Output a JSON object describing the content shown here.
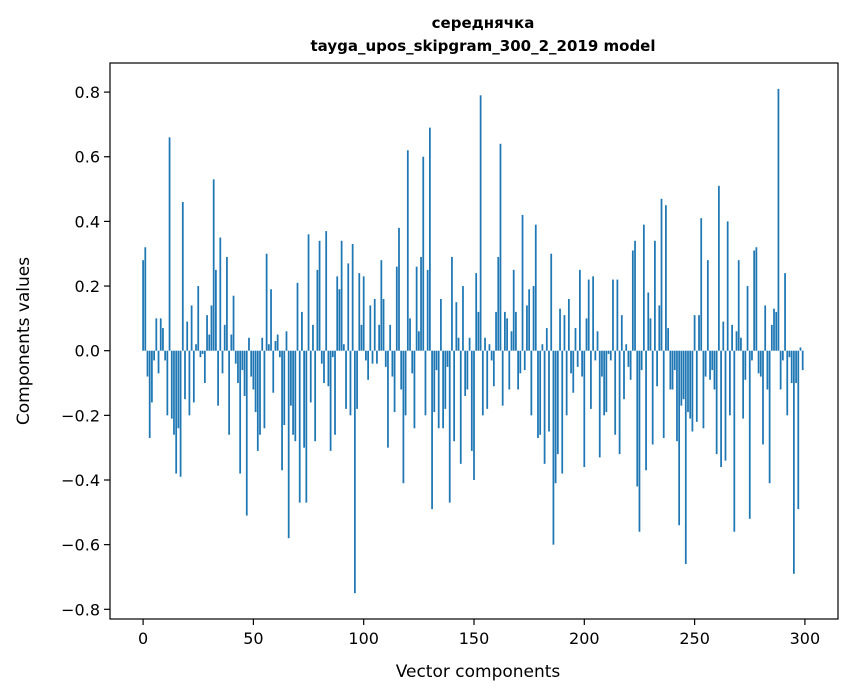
{
  "chart_data": {
    "type": "bar",
    "title_line1": "середнячка",
    "title_line2": "tayga_upos_skipgram_300_2_2019 model",
    "xlabel": "Vector components",
    "ylabel": "Components values",
    "xlim": [
      -15,
      315
    ],
    "ylim": [
      -0.83,
      0.89
    ],
    "xticks": [
      0,
      50,
      100,
      150,
      200,
      250,
      300
    ],
    "xtick_labels": [
      "0",
      "50",
      "100",
      "150",
      "200",
      "250",
      "300"
    ],
    "yticks": [
      -0.8,
      -0.6,
      -0.4,
      -0.2,
      0.0,
      0.2,
      0.4,
      0.6,
      0.8
    ],
    "ytick_labels": [
      "−0.8",
      "−0.6",
      "−0.4",
      "−0.2",
      "0.0",
      "0.2",
      "0.4",
      "0.6",
      "0.8"
    ],
    "bar_color": "#1f77b4",
    "values": [
      0.28,
      0.32,
      -0.08,
      -0.27,
      -0.16,
      -0.03,
      0.1,
      -0.07,
      0.1,
      0.07,
      -0.03,
      -0.2,
      0.66,
      -0.21,
      -0.26,
      -0.38,
      -0.24,
      -0.39,
      0.46,
      -0.15,
      0.09,
      -0.2,
      0.14,
      -0.16,
      0.02,
      0.2,
      -0.02,
      -0.01,
      -0.1,
      0.11,
      0.05,
      0.14,
      0.53,
      0.25,
      -0.17,
      0.35,
      -0.07,
      0.08,
      0.29,
      -0.26,
      0.05,
      0.17,
      -0.04,
      -0.1,
      -0.38,
      -0.06,
      -0.14,
      -0.51,
      0.04,
      -0.08,
      -0.12,
      -0.19,
      -0.31,
      -0.26,
      0.04,
      -0.24,
      0.3,
      0.02,
      0.19,
      -0.13,
      0.03,
      0.05,
      -0.02,
      -0.37,
      -0.23,
      0.06,
      -0.58,
      -0.17,
      -0.26,
      -0.28,
      0.21,
      -0.47,
      0.12,
      -0.3,
      -0.47,
      0.36,
      -0.16,
      0.08,
      -0.28,
      0.25,
      0.34,
      -0.04,
      -0.1,
      0.37,
      -0.11,
      -0.31,
      -0.02,
      -0.26,
      0.23,
      0.19,
      0.34,
      0.02,
      -0.18,
      0.27,
      -0.2,
      0.33,
      -0.75,
      -0.18,
      0.24,
      0.08,
      0.23,
      -0.03,
      -0.09,
      0.14,
      -0.04,
      0.16,
      -0.04,
      0.08,
      0.28,
      0.16,
      -0.05,
      -0.3,
      0.08,
      -0.08,
      -0.19,
      0.26,
      0.38,
      -0.12,
      -0.41,
      -0.2,
      0.62,
      0.1,
      -0.07,
      -0.24,
      0.26,
      0.06,
      0.29,
      0.6,
      -0.2,
      0.25,
      0.69,
      -0.49,
      -0.19,
      -0.06,
      -0.24,
      0.16,
      -0.24,
      -0.18,
      -0.05,
      -0.47,
      0.29,
      -0.28,
      0.15,
      0.04,
      -0.35,
      0.2,
      -0.14,
      -0.12,
      0.04,
      -0.31,
      -0.4,
      0.24,
      0.12,
      0.79,
      -0.2,
      0.04,
      -0.18,
      0.02,
      -0.03,
      -0.11,
      0.12,
      0.29,
      0.64,
      -0.17,
      0.12,
      0.1,
      -0.12,
      0.06,
      0.25,
      0.12,
      -0.12,
      -0.07,
      0.42,
      -0.06,
      0.14,
      0.19,
      -0.2,
      0.2,
      0.39,
      -0.27,
      -0.26,
      0.02,
      -0.35,
      0.07,
      -0.25,
      0.3,
      -0.6,
      -0.41,
      -0.32,
      0.13,
      -0.38,
      0.11,
      -0.2,
      0.16,
      -0.07,
      -0.13,
      0.07,
      -0.05,
      0.25,
      -0.08,
      -0.36,
      0.1,
      0.22,
      -0.18,
      0.23,
      -0.03,
      0.06,
      -0.33,
      -0.08,
      -0.2,
      -0.19,
      -0.01,
      -0.03,
      0.22,
      -0.26,
      0.22,
      -0.32,
      0.11,
      -0.15,
      0.02,
      -0.05,
      -0.09,
      0.31,
      0.34,
      -0.42,
      -0.56,
      -0.06,
      0.39,
      -0.37,
      0.18,
      0.1,
      -0.29,
      0.34,
      -0.11,
      0.14,
      0.47,
      -0.27,
      0.45,
      0.07,
      -0.12,
      -0.12,
      -0.06,
      -0.28,
      -0.54,
      -0.17,
      -0.15,
      -0.66,
      -0.19,
      -0.21,
      -0.25,
      0.11,
      -0.22,
      0.11,
      0.41,
      -0.24,
      -0.08,
      0.28,
      -0.09,
      -0.06,
      -0.12,
      -0.32,
      0.51,
      -0.36,
      0.09,
      -0.34,
      0.4,
      -0.2,
      0.08,
      -0.56,
      0.06,
      0.28,
      0.04,
      -0.21,
      -0.09,
      0.2,
      -0.52,
      -0.03,
      0.31,
      0.32,
      -0.07,
      -0.08,
      -0.29,
      0.14,
      -0.12,
      -0.41,
      0.08,
      0.13,
      0.12,
      0.81,
      -0.12,
      -0.03,
      0.24,
      -0.2,
      -0.02,
      -0.1,
      -0.69,
      -0.1,
      -0.49,
      0.01,
      -0.06
    ]
  }
}
